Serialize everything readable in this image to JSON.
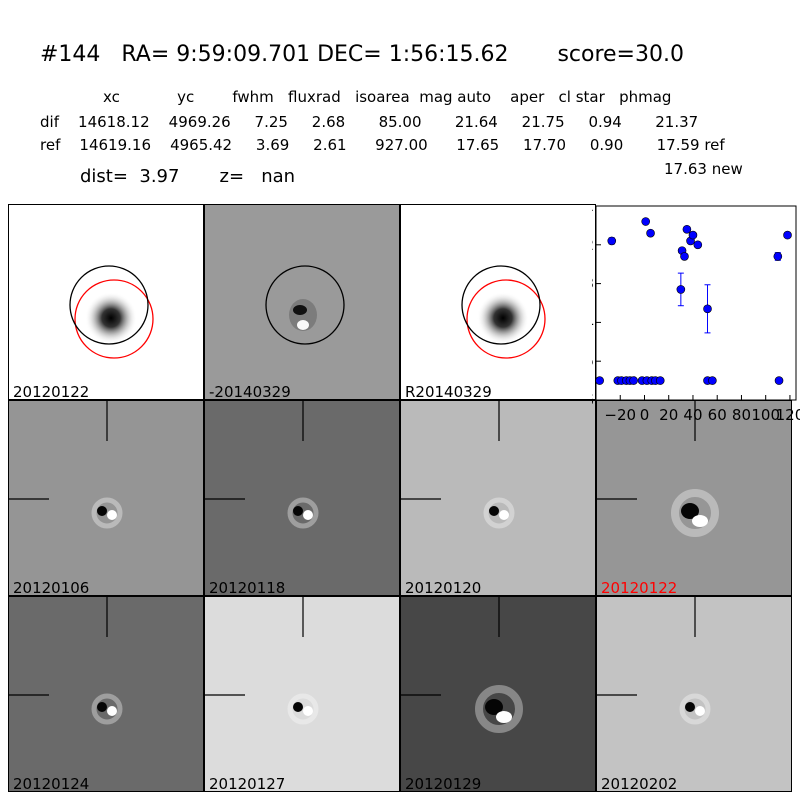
{
  "header": {
    "title": "#144   RA= 9:59:09.701 DEC= 1:56:15.62       score=30.0",
    "columns": "xc            yc        fwhm   fluxrad   isoarea  mag auto    aper   cl star   phmag",
    "dif_row": "dif    14618.12    4969.26     7.25     2.68       85.00       21.64     21.75     0.94       21.37",
    "ref_row": "ref    14619.16    4965.42     3.69     2.61      927.00      17.65     17.70     0.90       17.59 ref",
    "new_mag": "17.63 new",
    "dist_line": "dist=  3.97       z=   nan"
  },
  "top_panels": [
    {
      "label": "20120122",
      "kind": "new",
      "bg": "#ffffff"
    },
    {
      "label": "-20140329",
      "kind": "diff",
      "bg": "#9a9a9a"
    },
    {
      "label": "R20140329",
      "kind": "ref",
      "bg": "#ffffff"
    }
  ],
  "stamps": [
    {
      "label": "20120106",
      "bg": "#959595",
      "highlight": false
    },
    {
      "label": "20120118",
      "bg": "#6a6a6a",
      "highlight": false
    },
    {
      "label": "20120120",
      "bg": "#bababa",
      "highlight": false
    },
    {
      "label": "20120122",
      "bg": "#969696",
      "highlight": true
    },
    {
      "label": "20120124",
      "bg": "#6a6a6a",
      "highlight": false
    },
    {
      "label": "20120127",
      "bg": "#dcdcdc",
      "highlight": false
    },
    {
      "label": "20120129",
      "bg": "#474747",
      "highlight": false
    },
    {
      "label": "20120202",
      "bg": "#c3c3c3",
      "highlight": false
    }
  ],
  "colors": {
    "point": "#0000ff",
    "highlight_label": "#ff0000",
    "ref_circle": "#ff0000",
    "new_circle": "#000000"
  },
  "chart_data": {
    "type": "scatter",
    "xlim": [
      -40,
      125
    ],
    "ylim": [
      26,
      21
    ],
    "xticks": [
      "−20",
      "0",
      "20",
      "40",
      "60",
      "80",
      "100",
      "120"
    ],
    "xtick_values": [
      -20,
      0,
      20,
      40,
      60,
      80,
      100,
      120
    ],
    "yticks": [
      "21",
      "22",
      "23",
      "24",
      "25",
      "26"
    ],
    "ytick_values": [
      21,
      22,
      23,
      24,
      25,
      26
    ],
    "points": [
      {
        "x": -37,
        "y": 25.5
      },
      {
        "x": -27,
        "y": 21.9,
        "err": 0.08
      },
      {
        "x": -22,
        "y": 25.5
      },
      {
        "x": -19,
        "y": 25.5
      },
      {
        "x": -15,
        "y": 25.5
      },
      {
        "x": -12,
        "y": 25.5
      },
      {
        "x": -9,
        "y": 25.5
      },
      {
        "x": -2,
        "y": 25.5
      },
      {
        "x": 1,
        "y": 21.4
      },
      {
        "x": 2,
        "y": 25.5
      },
      {
        "x": 5,
        "y": 21.7
      },
      {
        "x": 6,
        "y": 25.5
      },
      {
        "x": 9,
        "y": 25.5
      },
      {
        "x": 13,
        "y": 25.5
      },
      {
        "x": 30,
        "y": 23.15,
        "err": 0.42
      },
      {
        "x": 31,
        "y": 22.15
      },
      {
        "x": 33,
        "y": 22.3
      },
      {
        "x": 35,
        "y": 21.6
      },
      {
        "x": 38,
        "y": 21.9
      },
      {
        "x": 40,
        "y": 21.75
      },
      {
        "x": 44,
        "y": 22.0
      },
      {
        "x": 52,
        "y": 23.65,
        "err": 0.62
      },
      {
        "x": 52,
        "y": 25.5
      },
      {
        "x": 56,
        "y": 25.5
      },
      {
        "x": 110,
        "y": 22.3,
        "err": 0.1
      },
      {
        "x": 111,
        "y": 25.5
      },
      {
        "x": 118,
        "y": 21.75
      }
    ]
  }
}
